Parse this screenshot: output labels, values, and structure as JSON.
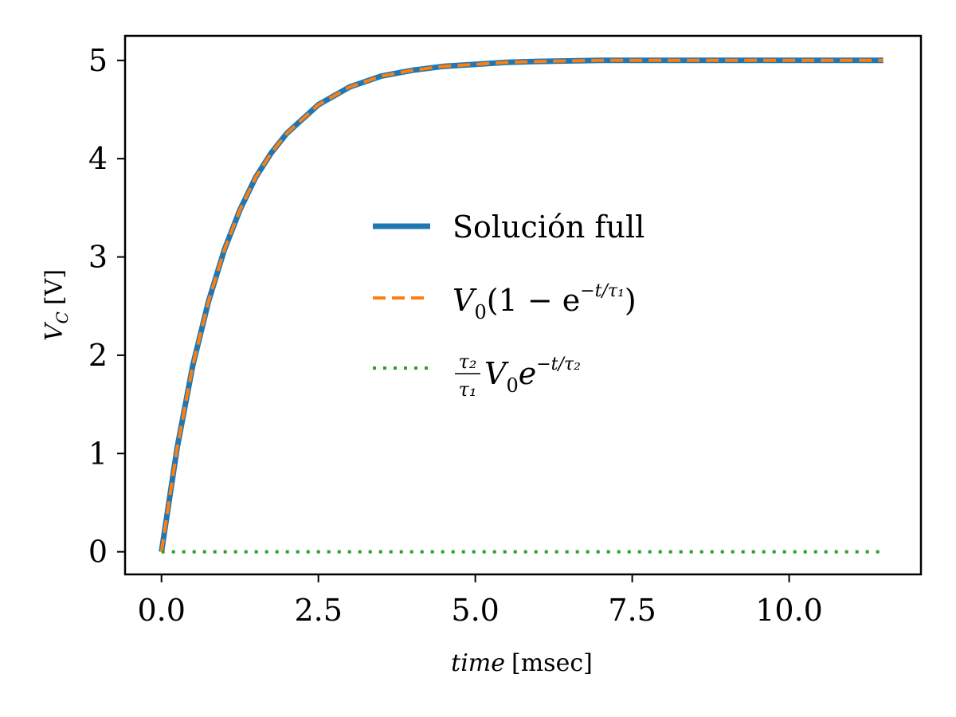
{
  "chart_data": {
    "type": "line",
    "xlabel_italic": "time",
    "xlabel_unit": "[msec]",
    "ylabel_main": "V",
    "ylabel_sub": "C",
    "ylabel_unit": "[V]",
    "xlim": [
      -0.58,
      12.1
    ],
    "ylim": [
      -0.23,
      5.25
    ],
    "xticks": [
      0.0,
      2.5,
      5.0,
      7.5,
      10.0
    ],
    "xtick_labels": [
      "0.0",
      "2.5",
      "5.0",
      "7.5",
      "10.0"
    ],
    "yticks": [
      0,
      1,
      2,
      3,
      4,
      5
    ],
    "ytick_labels": [
      "0",
      "1",
      "2",
      "3",
      "4",
      "5"
    ],
    "grid": false,
    "legend_position": "center",
    "x": [
      0.0,
      0.25,
      0.5,
      0.75,
      1.0,
      1.25,
      1.5,
      1.75,
      2.0,
      2.5,
      3.0,
      3.5,
      4.0,
      4.5,
      5.0,
      5.5,
      6.0,
      7.0,
      8.0,
      9.0,
      10.0,
      11.0,
      11.5
    ],
    "series": [
      {
        "name": "Solución full",
        "color": "#1f77b4",
        "style": "solid",
        "y": [
          0.0,
          1.06,
          1.9,
          2.55,
          3.07,
          3.48,
          3.81,
          4.06,
          4.26,
          4.55,
          4.73,
          4.84,
          4.9,
          4.94,
          4.96,
          4.98,
          4.99,
          5.0,
          5.0,
          5.0,
          5.0,
          5.0,
          5.0
        ]
      },
      {
        "name_prefix": "V",
        "name_sub": "0",
        "name_mid": "(1 − e",
        "name_sup": "−t/τ₁",
        "name_end": ")",
        "color": "#ff7f0e",
        "style": "dashed",
        "y": [
          0.0,
          1.06,
          1.9,
          2.55,
          3.07,
          3.48,
          3.81,
          4.06,
          4.26,
          4.55,
          4.73,
          4.84,
          4.9,
          4.94,
          4.96,
          4.98,
          4.99,
          5.0,
          5.0,
          5.0,
          5.0,
          5.0,
          5.0
        ]
      },
      {
        "name_frac_num": "τ₂",
        "name_frac_den": "τ₁",
        "name_prefix": "V",
        "name_sub": "0",
        "name_mid": "e",
        "name_sup": "−t/τ₂",
        "color": "#2ca02c",
        "style": "dotted",
        "y": [
          0.0,
          0.0,
          0.0,
          0.0,
          0.0,
          0.0,
          0.0,
          0.0,
          0.0,
          0.0,
          0.0,
          0.0,
          0.0,
          0.0,
          0.0,
          0.0,
          0.0,
          0.0,
          0.0,
          0.0,
          0.0,
          0.0,
          0.0
        ]
      }
    ]
  }
}
